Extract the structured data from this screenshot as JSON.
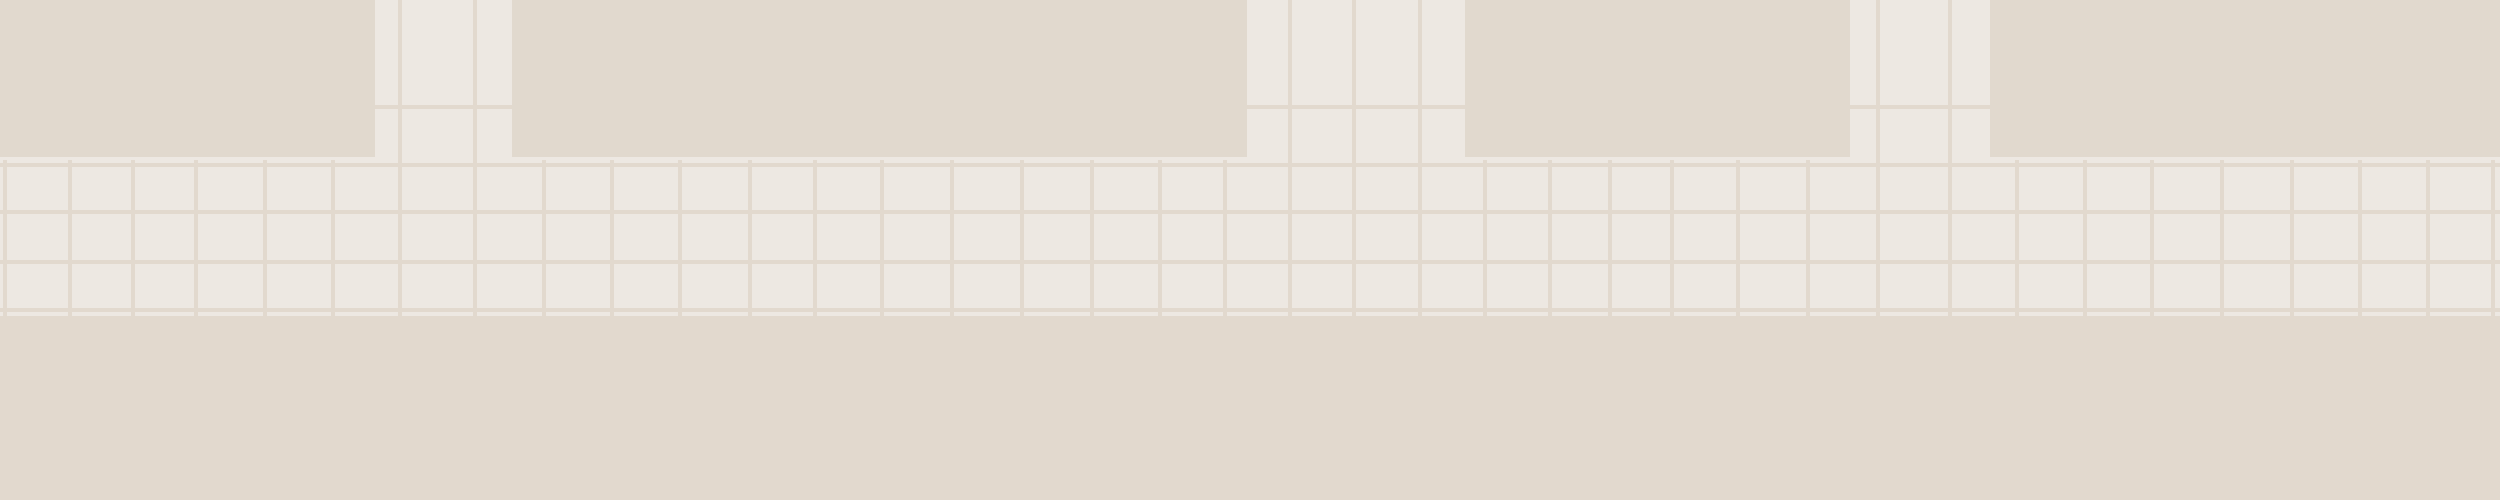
{
  "map": {
    "colors": {
      "background": "#ede8e2",
      "road": "#e2d9ce",
      "block": "#e1d9ce",
      "street": "#ece7e1"
    }
  }
}
